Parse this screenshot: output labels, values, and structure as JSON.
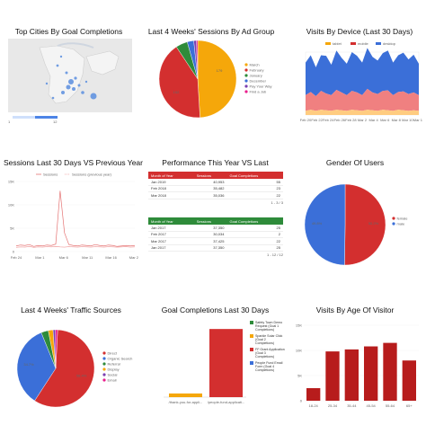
{
  "colors": {
    "red": "#d32f2f",
    "orange": "#f5a70a",
    "green": "#2e8b3a",
    "blue": "#3b6fd8",
    "purple": "#7b3fb0",
    "pink": "#e91e8c",
    "darkred": "#b71c1c"
  },
  "panels": {
    "cities": {
      "title": "Top Cities By Goal Completions"
    },
    "adgroup": {
      "title": "Last 4 Weeks' Sessions By Ad Group",
      "legend": [
        "March",
        "February",
        "January",
        "December",
        "Pay Your Way",
        "Find a Job"
      ],
      "slice_labels": [
        "152",
        "179"
      ]
    },
    "device": {
      "title": "Visits By Device (Last 30 Days)",
      "legend": [
        "tablet",
        "mobile",
        "desktop"
      ],
      "xticks": [
        "Feb 20",
        "Feb 22",
        "Feb 24",
        "Feb 26",
        "Feb 28",
        "Mar 2",
        "Mar 4",
        "Mar 6",
        "Mar 8",
        "Mar 10",
        "Mar 12"
      ]
    },
    "sessions": {
      "title": "Sessions Last 30 Days VS Previous Year",
      "legend": [
        "Sessions",
        "Sessions (previous year)"
      ],
      "yticks": [
        "15K",
        "10K",
        "5K",
        "0"
      ],
      "xticks": [
        "Feb 24",
        "Mar 1",
        "Mar 6",
        "Mar 11",
        "Mar 16",
        "Mar 22"
      ]
    },
    "performance": {
      "title": "Performance This Year VS Last",
      "table1": {
        "headers": [
          "Month of Year",
          "Sessions",
          "Goal Completions"
        ],
        "rows": [
          [
            "Jan 2019",
            "40,953",
            "55"
          ],
          [
            "Feb 2018",
            "35,482",
            "23"
          ],
          [
            "Mar 2018",
            "35,036",
            "22"
          ]
        ],
        "pager": "1 - 3 / 3"
      },
      "table2": {
        "headers": [
          "Month of Year",
          "Sessions",
          "Goal Completions"
        ],
        "rows": [
          [
            "Jan 2017",
            "37,350",
            "25"
          ],
          [
            "Feb 2017",
            "30,034",
            "2"
          ],
          [
            "Mar 2017",
            "37,425",
            "22"
          ],
          [
            "Jan 2017",
            "37,350",
            "25"
          ]
        ],
        "pager": "1 - 12 / 12"
      }
    },
    "gender": {
      "title": "Gender Of Users",
      "legend": [
        "female",
        "male"
      ],
      "slice_labels": [
        "50.2%",
        "49.8%"
      ]
    },
    "traffic": {
      "title": "Last 4 Weeks' Traffic Sources",
      "legend": [
        "Direct",
        "Organic Search",
        "Referral",
        "Display",
        "Social",
        "Email"
      ],
      "slice_labels": [
        "58.4%",
        "34.7%"
      ]
    },
    "goals": {
      "title": "Goal Completions Last 30 Days",
      "legend": [
        "Safety Town Demo Request (Goal 1 Completions)",
        "Sparkle Solar Click (Goal 2 Completions)",
        "FF Grant Application (Goal 3 Completions)",
        "People Fund Email Form (Goal 4 Completions)"
      ],
      "xlabels": [
        "/thank-you-for-appli...",
        "/people-fund-applicati..."
      ]
    },
    "age": {
      "title": "Visits By Age Of Visitor",
      "yticks": [
        "15K",
        "10K",
        "5K",
        "0"
      ],
      "categories": [
        "18-24",
        "25-34",
        "35-44",
        "45-54",
        "55-64",
        "65+"
      ]
    }
  },
  "chart_data": [
    {
      "type": "pie",
      "title": "Last 4 Weeks' Sessions By Ad Group",
      "categories": [
        "March",
        "February",
        "January",
        "December",
        "Pay Your Way",
        "Find a Job"
      ],
      "values": [
        179,
        152,
        18,
        10,
        4,
        2
      ]
    },
    {
      "type": "area",
      "title": "Visits By Device (Last 30 Days)",
      "x": [
        "Feb 20",
        "Feb 21",
        "Feb 22",
        "Feb 23",
        "Feb 24",
        "Feb 25",
        "Feb 26",
        "Feb 27",
        "Feb 28",
        "Mar 1",
        "Mar 2",
        "Mar 3",
        "Mar 4",
        "Mar 5",
        "Mar 6",
        "Mar 7",
        "Mar 8",
        "Mar 9",
        "Mar 10",
        "Mar 11",
        "Mar 12",
        "Mar 13",
        "Mar 14"
      ],
      "series": [
        {
          "name": "desktop",
          "values": [
            62,
            70,
            55,
            68,
            72,
            58,
            75,
            66,
            60,
            74,
            70,
            62,
            78,
            68,
            64,
            72,
            76,
            62,
            70,
            74,
            66,
            72,
            60
          ]
        },
        {
          "name": "mobile",
          "values": [
            30,
            34,
            28,
            36,
            32,
            30,
            38,
            34,
            30,
            36,
            34,
            30,
            40,
            34,
            32,
            36,
            38,
            30,
            34,
            36,
            32,
            34,
            30
          ]
        },
        {
          "name": "tablet",
          "values": [
            8,
            10,
            8,
            10,
            9,
            8,
            10,
            9,
            8,
            10,
            9,
            8,
            10,
            9,
            8,
            10,
            9,
            8,
            10,
            9,
            8,
            9,
            8
          ]
        }
      ]
    },
    {
      "type": "line",
      "title": "Sessions Last 30 Days VS Previous Year",
      "x": [
        "Feb 24",
        "Feb 25",
        "Feb 26",
        "Feb 27",
        "Feb 28",
        "Mar 1",
        "Mar 2",
        "Mar 3",
        "Mar 4",
        "Mar 5",
        "Mar 6",
        "Mar 7",
        "Mar 8",
        "Mar 9",
        "Mar 10",
        "Mar 11",
        "Mar 12",
        "Mar 13",
        "Mar 14",
        "Mar 15",
        "Mar 16",
        "Mar 17",
        "Mar 18",
        "Mar 19",
        "Mar 20",
        "Mar 21",
        "Mar 22",
        "Mar 23"
      ],
      "series": [
        {
          "name": "Sessions",
          "values": [
            1200,
            1400,
            1300,
            1500,
            1100,
            1300,
            1200,
            1400,
            1300,
            1600,
            13000,
            4000,
            1500,
            1300,
            1200,
            1400,
            1300,
            1200,
            1500,
            1300,
            1200,
            1400,
            1300,
            1100,
            1200,
            1300,
            1200,
            1300
          ]
        },
        {
          "name": "Sessions (previous year)",
          "values": [
            900,
            1000,
            950,
            1100,
            900,
            1000,
            950,
            1050,
            1000,
            1100,
            1000,
            950,
            1050,
            1000,
            950,
            1050,
            1000,
            950,
            1050,
            1000,
            950,
            1050,
            1000,
            950,
            1000,
            1050,
            950,
            1000
          ]
        }
      ],
      "ylim": [
        0,
        15000
      ]
    },
    {
      "type": "pie",
      "title": "Gender Of Users",
      "categories": [
        "female",
        "male"
      ],
      "values": [
        50.2,
        49.8
      ]
    },
    {
      "type": "pie",
      "title": "Last 4 Weeks' Traffic Sources",
      "categories": [
        "Direct",
        "Organic Search",
        "Referral",
        "Display",
        "Social",
        "Email"
      ],
      "values": [
        58.4,
        34.7,
        3,
        2,
        1,
        0.9
      ]
    },
    {
      "type": "bar",
      "title": "Goal Completions Last 30 Days",
      "categories": [
        "/thank-you-for-appli...",
        "/people-fund-applicati..."
      ],
      "series": [
        {
          "name": "Safety Town Demo Request (Goal 1 Completions)",
          "values": [
            0,
            0
          ]
        },
        {
          "name": "Sparkle Solar Click (Goal 2 Completions)",
          "values": [
            2,
            0
          ]
        },
        {
          "name": "FF Grant Application (Goal 3 Completions)",
          "values": [
            0,
            37
          ]
        },
        {
          "name": "People Fund Email Form (Goal 4 Completions)",
          "values": [
            0,
            0
          ]
        }
      ]
    },
    {
      "type": "bar",
      "title": "Visits By Age Of Visitor",
      "categories": [
        "18-24",
        "25-34",
        "35-44",
        "45-54",
        "55-64",
        "65+"
      ],
      "values": [
        2500,
        9800,
        10200,
        10800,
        11500,
        8000
      ],
      "ylim": [
        0,
        15000
      ]
    }
  ]
}
